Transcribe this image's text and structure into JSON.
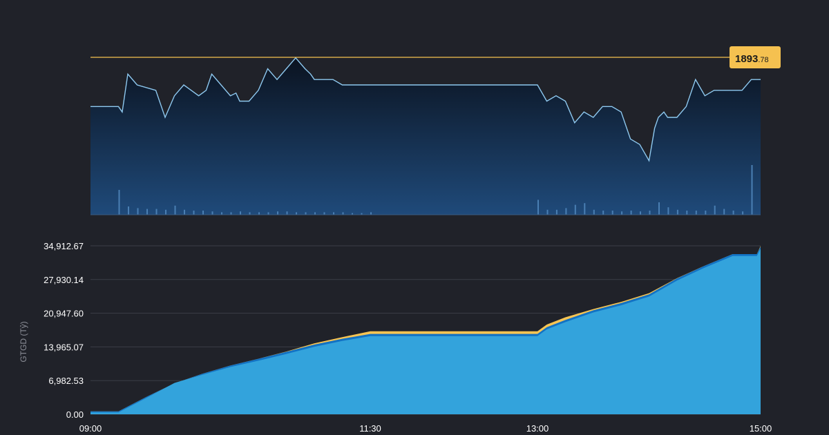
{
  "colors": {
    "background": "#202229",
    "price_line": "#8ec9f0",
    "ref_line": "#f5c150",
    "badge_bg": "#f5c150",
    "area_main": "#33a3dc",
    "area_dark": "#1272c4",
    "area_ref": "#f7c453",
    "grid": "#3b3e47"
  },
  "chart_data": [
    {
      "type": "line",
      "reference_value": {
        "integer": "1893",
        "decimal": ".78"
      },
      "x_domain": [
        "09:00",
        "15:00"
      ],
      "y_range": [
        1866,
        1896
      ],
      "series": [
        {
          "values_x": [
            "09:00",
            "09:15",
            "09:17",
            "09:20",
            "09:25",
            "09:35",
            "09:40",
            "09:45",
            "09:50",
            "09:58",
            "10:02",
            "10:05",
            "10:10",
            "10:15",
            "10:18",
            "10:20",
            "10:25",
            "10:30",
            "10:35",
            "10:40",
            "10:45",
            "10:50",
            "10:55",
            "10:58",
            "11:00",
            "11:05",
            "11:10",
            "11:15",
            "11:30",
            "13:00",
            "13:05",
            "13:10",
            "13:15",
            "13:20",
            "13:25",
            "13:30",
            "13:35",
            "13:40",
            "13:45",
            "13:50",
            "13:55",
            "14:00",
            "14:03",
            "14:05",
            "14:08",
            "14:10",
            "14:15",
            "14:20",
            "14:25",
            "14:30",
            "14:35",
            "14:40",
            "14:45",
            "14:50",
            "14:55",
            "14:58",
            "15:00"
          ],
          "values_y": [
            1886,
            1886,
            1885,
            1892,
            1890,
            1889,
            1884,
            1888,
            1890,
            1888,
            1889,
            1892,
            1890,
            1888,
            1888.5,
            1887,
            1887,
            1889,
            1893,
            1891,
            1893,
            1895,
            1893,
            1892,
            1891,
            1891,
            1891,
            1890,
            1890,
            1890,
            1887,
            1888,
            1887,
            1883,
            1885,
            1884,
            1886,
            1886,
            1885,
            1880,
            1879,
            1876,
            1882,
            1884,
            1885,
            1884,
            1884,
            1886,
            1891,
            1888,
            1889,
            1889,
            1889,
            1889,
            1891,
            1891,
            1891
          ]
        }
      ],
      "volume": {
        "x": [
          "09:15",
          "09:20",
          "09:25",
          "09:30",
          "09:35",
          "09:40",
          "09:45",
          "09:50",
          "09:55",
          "10:00",
          "10:05",
          "10:10",
          "10:15",
          "10:20",
          "10:25",
          "10:30",
          "10:35",
          "10:40",
          "10:45",
          "10:50",
          "10:55",
          "11:00",
          "11:05",
          "11:10",
          "11:15",
          "11:20",
          "11:25",
          "11:30",
          "13:00",
          "13:05",
          "13:10",
          "13:15",
          "13:20",
          "13:25",
          "13:30",
          "13:35",
          "13:40",
          "13:45",
          "13:50",
          "13:55",
          "14:00",
          "14:05",
          "14:10",
          "14:15",
          "14:20",
          "14:25",
          "14:30",
          "14:35",
          "14:40",
          "14:45",
          "14:50",
          "14:55"
        ],
        "y": [
          30,
          10,
          8,
          7,
          7,
          6,
          11,
          6,
          5,
          5,
          4,
          3,
          3,
          4,
          3,
          3,
          3,
          4,
          4,
          3,
          3,
          3,
          3,
          3,
          3,
          2,
          2,
          3,
          18,
          6,
          6,
          8,
          12,
          14,
          6,
          5,
          5,
          4,
          5,
          4,
          5,
          15,
          9,
          6,
          5,
          5,
          5,
          11,
          7,
          5,
          4,
          60
        ]
      }
    },
    {
      "type": "area",
      "ylabel": "GTGD (Tỷ)",
      "x_ticks": [
        "09:00",
        "11:30",
        "13:00",
        "15:00"
      ],
      "y_ticks": [
        "0.00",
        "6,982.53",
        "13,965.07",
        "20,947.60",
        "27,930.14",
        "34,912.67"
      ],
      "ylim": [
        0,
        34912.67
      ],
      "series": [
        {
          "role": "reference",
          "x": [
            "09:00",
            "09:15",
            "09:30",
            "09:45",
            "10:00",
            "10:15",
            "10:30",
            "10:45",
            "11:00",
            "11:15",
            "11:30",
            "13:00",
            "13:05",
            "13:15",
            "13:30",
            "13:45",
            "14:00",
            "14:15",
            "14:30",
            "14:45",
            "14:58",
            "15:00"
          ],
          "y": [
            600,
            600,
            3600,
            6400,
            8400,
            10100,
            11500,
            13000,
            14700,
            16000,
            17200,
            17200,
            18600,
            20100,
            21800,
            23300,
            25100,
            28200,
            30800,
            33200,
            33200,
            34900
          ]
        },
        {
          "role": "main",
          "x": [
            "09:00",
            "09:15",
            "09:30",
            "09:45",
            "10:00",
            "10:15",
            "10:30",
            "10:45",
            "11:00",
            "11:15",
            "11:30",
            "13:00",
            "13:05",
            "13:15",
            "13:30",
            "13:45",
            "14:00",
            "14:15",
            "14:30",
            "14:45",
            "14:58",
            "15:00"
          ],
          "y": [
            600,
            600,
            3600,
            6700,
            8400,
            10000,
            11300,
            12700,
            14200,
            15400,
            16400,
            16400,
            17800,
            19300,
            21300,
            22800,
            24600,
            27900,
            30600,
            33000,
            33000,
            34500
          ]
        }
      ]
    }
  ]
}
